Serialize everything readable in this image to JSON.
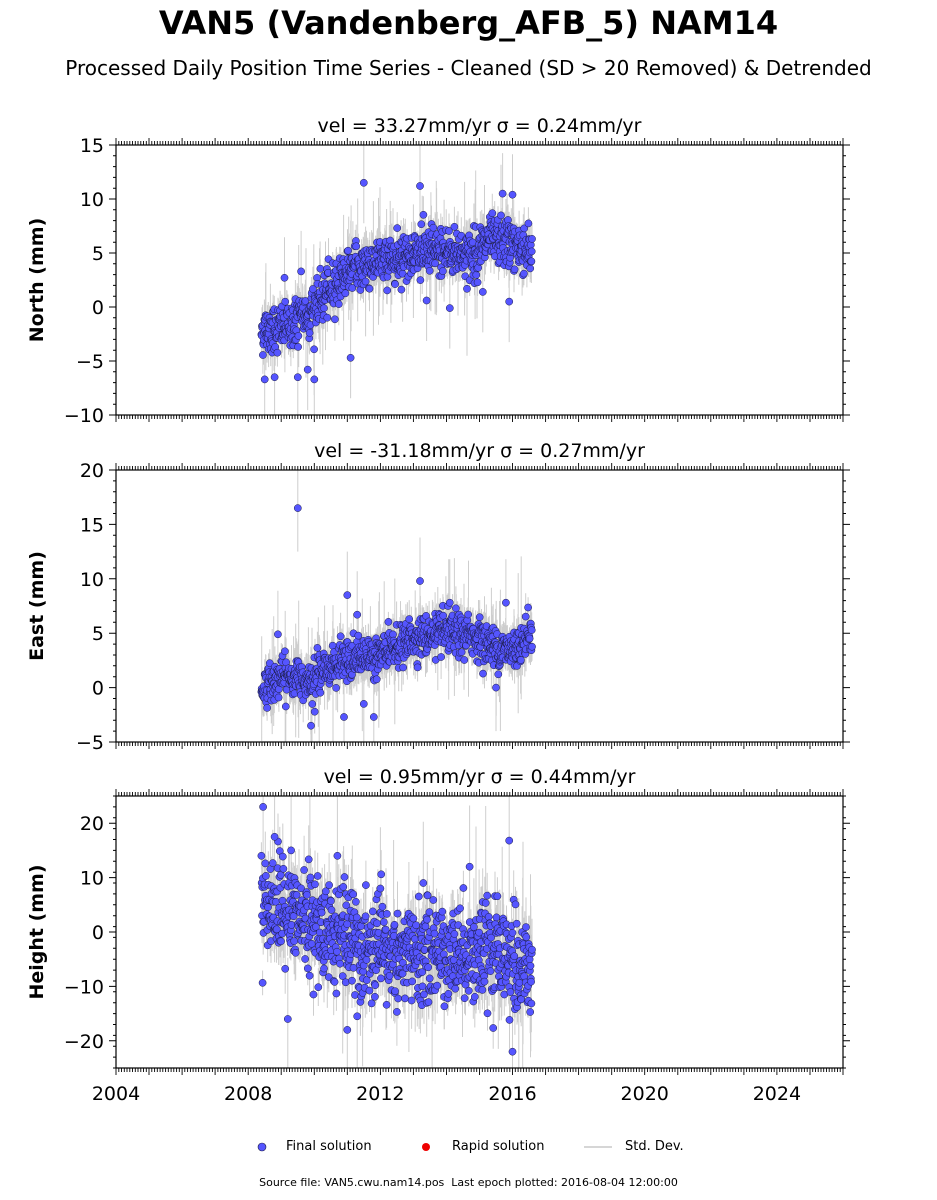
{
  "chart_data": {
    "type": "scatter",
    "title": "VAN5 (Vandenberg_AFB_5) NAM14",
    "subtitle": "Processed Daily Position Time Series - Cleaned (SD > 20 Removed) & Detrended",
    "x_range": [
      2004,
      2026
    ],
    "x_tick_labels": [
      "2004",
      "2008",
      "2012",
      "2016",
      "2020",
      "2024"
    ],
    "grid": false,
    "legend_placement": "bottom-center",
    "panels": [
      {
        "ylabel": "North (mm)",
        "title": "vel = 33.27mm/yr   σ = 0.24mm/yr",
        "ylim": [
          -10,
          15
        ],
        "y_ticks": [
          -10,
          -5,
          0,
          5,
          10,
          15
        ],
        "y_tick_labels": [
          "−10",
          "−5",
          "0",
          "5",
          "10",
          "15"
        ],
        "trend": [
          [
            2008.4,
            -2.2
          ],
          [
            2009.2,
            -1.8
          ],
          [
            2009.9,
            -0.4
          ],
          [
            2010.5,
            1.6
          ],
          [
            2011.0,
            3.4
          ],
          [
            2012.0,
            4.3
          ],
          [
            2013.0,
            5.0
          ],
          [
            2014.0,
            5.2
          ],
          [
            2014.8,
            4.8
          ],
          [
            2015.3,
            6.1
          ],
          [
            2015.8,
            6.0
          ],
          [
            2016.6,
            5.1
          ]
        ],
        "scatter_sd": 1.1,
        "outliers": [
          [
            2011.5,
            11.5
          ],
          [
            2013.2,
            11.2
          ],
          [
            2015.7,
            10.5
          ],
          [
            2016.0,
            10.4
          ],
          [
            2009.6,
            3.3
          ],
          [
            2009.1,
            2.7
          ],
          [
            2011.1,
            -4.7
          ],
          [
            2008.5,
            -6.7
          ],
          [
            2008.8,
            -6.5
          ],
          [
            2009.5,
            -6.5
          ],
          [
            2009.8,
            -5.8
          ],
          [
            2010.0,
            -6.7
          ],
          [
            2013.4,
            0.6
          ],
          [
            2014.1,
            -0.1
          ],
          [
            2015.1,
            1.4
          ],
          [
            2015.9,
            0.5
          ]
        ],
        "std_dev_typical": 1.5
      },
      {
        "ylabel": "East (mm)",
        "title": "vel = -31.18mm/yr   σ = 0.27mm/yr",
        "ylim": [
          -5,
          20
        ],
        "y_ticks": [
          -5,
          0,
          5,
          10,
          15,
          20
        ],
        "y_tick_labels": [
          "−5",
          "0",
          "5",
          "10",
          "15",
          "20"
        ],
        "trend": [
          [
            2008.4,
            -0.2
          ],
          [
            2009.0,
            1.0
          ],
          [
            2009.8,
            0.8
          ],
          [
            2010.5,
            2.0
          ],
          [
            2011.5,
            2.8
          ],
          [
            2012.2,
            3.3
          ],
          [
            2013.0,
            4.5
          ],
          [
            2014.0,
            5.0
          ],
          [
            2014.8,
            4.8
          ],
          [
            2015.5,
            3.6
          ],
          [
            2016.0,
            3.4
          ],
          [
            2016.6,
            5.2
          ]
        ],
        "scatter_sd": 0.9,
        "outliers": [
          [
            2009.5,
            16.5
          ],
          [
            2013.2,
            9.8
          ],
          [
            2011.0,
            8.5
          ],
          [
            2011.3,
            6.7
          ],
          [
            2008.9,
            4.9
          ],
          [
            2015.8,
            7.8
          ],
          [
            2009.9,
            -3.5
          ],
          [
            2010.9,
            -2.7
          ],
          [
            2011.8,
            -2.7
          ],
          [
            2011.5,
            -1.5
          ],
          [
            2014.1,
            7.8
          ],
          [
            2015.5,
            0.0
          ]
        ],
        "std_dev_typical": 1.6
      },
      {
        "ylabel": "Height (mm)",
        "title": "vel = 0.95mm/yr   σ = 0.44mm/yr",
        "ylim": [
          -25,
          25
        ],
        "y_ticks": [
          -20,
          -10,
          0,
          10,
          20
        ],
        "y_tick_labels": [
          "−20",
          "−10",
          "0",
          "10",
          "20"
        ],
        "trend": [
          [
            2008.4,
            6.0
          ],
          [
            2009.0,
            4.0
          ],
          [
            2010.0,
            1.0
          ],
          [
            2010.8,
            -0.5
          ],
          [
            2011.5,
            -4.0
          ],
          [
            2012.5,
            -4.5
          ],
          [
            2013.5,
            -4.0
          ],
          [
            2014.5,
            -3.5
          ],
          [
            2015.5,
            -4.5
          ],
          [
            2016.2,
            -6.0
          ],
          [
            2016.6,
            -6.5
          ]
        ],
        "scatter_sd": 4.5,
        "outliers": [
          [
            2008.45,
            23.0
          ],
          [
            2008.8,
            17.5
          ],
          [
            2015.9,
            16.8
          ],
          [
            2016.0,
            -22.0
          ],
          [
            2009.2,
            -16.0
          ],
          [
            2011.0,
            -18.0
          ],
          [
            2009.3,
            15.0
          ],
          [
            2012.0,
            8.0
          ],
          [
            2014.7,
            12.0
          ],
          [
            2010.7,
            14.0
          ],
          [
            2013.3,
            9.0
          ],
          [
            2011.3,
            -15.5
          ]
        ],
        "std_dev_typical": 4.5
      }
    ],
    "t_start": 2008.4,
    "t_end": 2016.59,
    "colors": {
      "final": "#5555ff",
      "final_edge": "#1a1a40",
      "rapid": "#ee0000",
      "std_dev": "#bdbdbd"
    }
  },
  "legend": {
    "final": "Final solution",
    "rapid": "Rapid solution",
    "std": "Std. Dev."
  },
  "footer": {
    "source": "Source file: VAN5.cwu.nam14.pos",
    "last_epoch": "Last epoch plotted: 2016-08-04 12:00:00"
  }
}
